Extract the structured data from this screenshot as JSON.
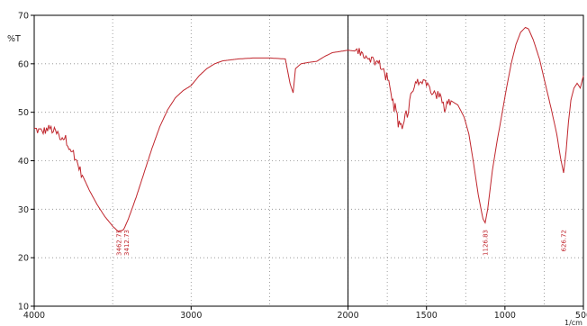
{
  "chart_data": {
    "type": "line",
    "title": "",
    "xlabel": "1/cm",
    "ylabel": "%T",
    "xlim": [
      4000,
      500
    ],
    "ylim": [
      10,
      70
    ],
    "x_ticks": [
      4000,
      3000,
      2000,
      1500,
      1000,
      500
    ],
    "y_ticks": [
      10,
      20,
      30,
      40,
      50,
      60,
      70
    ],
    "x_grid": [
      4000,
      3500,
      3000,
      2500,
      2000,
      1750,
      1500,
      1250,
      1000,
      750,
      500
    ],
    "y_grid": [
      10,
      20,
      30,
      40,
      50,
      60,
      70
    ],
    "grid": true,
    "reference_line_x": 2000,
    "series": [
      {
        "color": "#c0262d",
        "points": [
          [
            4000,
            46.5
          ],
          [
            3950,
            46.0
          ],
          [
            3900,
            46.7
          ],
          [
            3850,
            45.5
          ],
          [
            3800,
            44.5
          ],
          [
            3750,
            41.5
          ],
          [
            3700,
            37.5
          ],
          [
            3650,
            34.0
          ],
          [
            3600,
            31.0
          ],
          [
            3550,
            28.5
          ],
          [
            3500,
            26.5
          ],
          [
            3462,
            25.3
          ],
          [
            3430,
            25.8
          ],
          [
            3400,
            28.0
          ],
          [
            3350,
            32.5
          ],
          [
            3300,
            37.5
          ],
          [
            3250,
            42.5
          ],
          [
            3200,
            47.0
          ],
          [
            3150,
            50.5
          ],
          [
            3100,
            53.0
          ],
          [
            3050,
            54.5
          ],
          [
            3000,
            55.5
          ],
          [
            2950,
            57.5
          ],
          [
            2900,
            59.0
          ],
          [
            2850,
            60.0
          ],
          [
            2800,
            60.6
          ],
          [
            2700,
            61.0
          ],
          [
            2600,
            61.2
          ],
          [
            2500,
            61.2
          ],
          [
            2400,
            61.0
          ],
          [
            2370,
            56.0
          ],
          [
            2350,
            54.0
          ],
          [
            2335,
            59.0
          ],
          [
            2300,
            60.0
          ],
          [
            2250,
            60.3
          ],
          [
            2200,
            60.5
          ],
          [
            2150,
            61.5
          ],
          [
            2100,
            62.3
          ],
          [
            2000,
            62.8
          ],
          [
            1950,
            62.6
          ],
          [
            1900,
            62.0
          ],
          [
            1850,
            61.0
          ],
          [
            1800,
            60.0
          ],
          [
            1760,
            58.0
          ],
          [
            1720,
            54.0
          ],
          [
            1680,
            49.0
          ],
          [
            1655,
            47.0
          ],
          [
            1630,
            50.0
          ],
          [
            1600,
            53.5
          ],
          [
            1570,
            55.5
          ],
          [
            1550,
            56.5
          ],
          [
            1520,
            56.0
          ],
          [
            1500,
            55.5
          ],
          [
            1480,
            55.0
          ],
          [
            1450,
            54.0
          ],
          [
            1420,
            53.5
          ],
          [
            1400,
            52.5
          ],
          [
            1385,
            50.5
          ],
          [
            1370,
            52.5
          ],
          [
            1350,
            52.5
          ],
          [
            1300,
            51.5
          ],
          [
            1260,
            49.0
          ],
          [
            1230,
            45.5
          ],
          [
            1200,
            39.5
          ],
          [
            1170,
            33.0
          ],
          [
            1140,
            28.0
          ],
          [
            1126,
            27.2
          ],
          [
            1110,
            30.0
          ],
          [
            1080,
            38.0
          ],
          [
            1050,
            44.0
          ],
          [
            1020,
            49.5
          ],
          [
            990,
            55.0
          ],
          [
            960,
            60.0
          ],
          [
            930,
            64.0
          ],
          [
            900,
            66.5
          ],
          [
            870,
            67.5
          ],
          [
            850,
            67.2
          ],
          [
            820,
            65.0
          ],
          [
            780,
            61.0
          ],
          [
            740,
            55.5
          ],
          [
            700,
            50.0
          ],
          [
            670,
            45.5
          ],
          [
            645,
            40.5
          ],
          [
            626,
            37.5
          ],
          [
            610,
            42.0
          ],
          [
            595,
            48.0
          ],
          [
            580,
            52.5
          ],
          [
            560,
            55.0
          ],
          [
            540,
            56.0
          ],
          [
            520,
            55.0
          ],
          [
            500,
            57.5
          ]
        ]
      }
    ],
    "noisy_ranges": [
      [
        4000,
        3700
      ],
      [
        1950,
        1500
      ],
      [
        1500,
        1350
      ]
    ],
    "annotations": [
      {
        "x": 3462,
        "text": "3462.73"
      },
      {
        "x": 3412,
        "text": "3412.73"
      },
      {
        "x": 1126,
        "text": "1126.83"
      },
      {
        "x": 626,
        "text": "626.72"
      }
    ]
  }
}
